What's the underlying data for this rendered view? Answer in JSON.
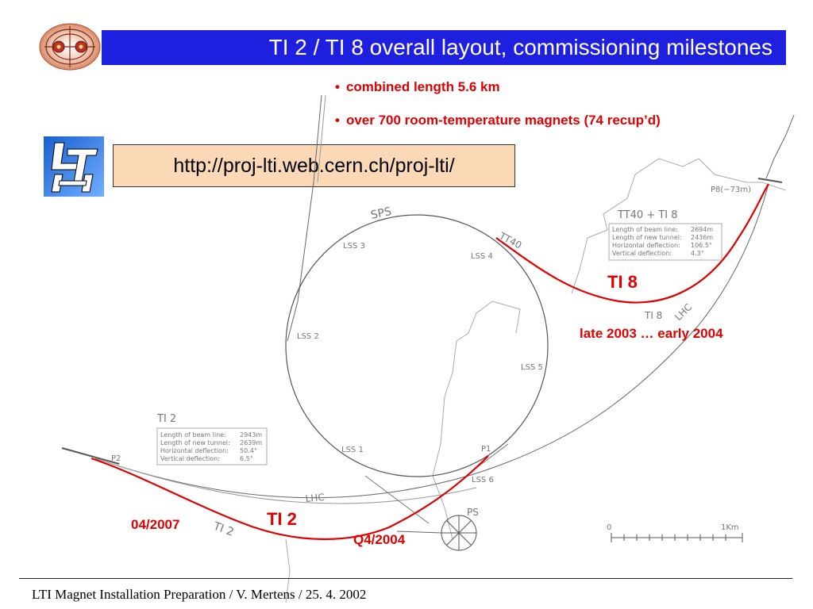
{
  "title": "TI 2 / TI 8 overall layout, commissioning milestones",
  "bullets": [
    "combined length 5.6 km",
    "over 700 room-temperature magnets (74 recup’d)"
  ],
  "url": "http://proj-lti.web.cern.ch/proj-lti/",
  "logos": {
    "lti_logo_text": "LTI"
  },
  "map": {
    "ring_label": "SPS",
    "lhc_label": "LHC",
    "ps_label": "PS",
    "lss_labels": [
      "LSS 1",
      "LSS 2",
      "LSS 3",
      "LSS 4",
      "LSS 5",
      "LSS 6"
    ],
    "point_labels": [
      "P1",
      "P2",
      "P8(−73m)"
    ],
    "tt40_label": "TT40",
    "ti2_map_label": "TI 2",
    "ti8_map_label": "TI 8",
    "ti2_diag_label": "TI 2",
    "scale_zero": "0",
    "scale_end": "1Km",
    "ti2_box": {
      "heading": "TI 2",
      "lines": [
        [
          "Length of beam line:",
          "2943m"
        ],
        [
          "Length of new tunnel:",
          "2639m"
        ],
        [
          "Horizontal deflection:",
          "50.4°"
        ],
        [
          "Vertical deflection:",
          "6.5°"
        ]
      ]
    },
    "ti8_box": {
      "heading": "TT40 + TI 8",
      "lines": [
        [
          "Length of beam line:",
          "2694m"
        ],
        [
          "Length of new tunnel:",
          "2436m"
        ],
        [
          "Horizontal deflection:",
          "106.5°"
        ],
        [
          "Vertical deflection:",
          "4.3°"
        ]
      ]
    }
  },
  "annotations": {
    "ti8": "TI 8",
    "ti8_date": "late 2003 … early 2004",
    "ti2": "TI 2",
    "ti2_date_left": "04/2007",
    "ti2_date_right": "Q4/2004"
  },
  "footer": "LTI Magnet Installation Preparation / V. Mertens / 25. 4. 2002",
  "colors": {
    "title_bar": "#1f1fe0",
    "accent_red": "#e00000",
    "url_box": "#fbd8b6"
  }
}
